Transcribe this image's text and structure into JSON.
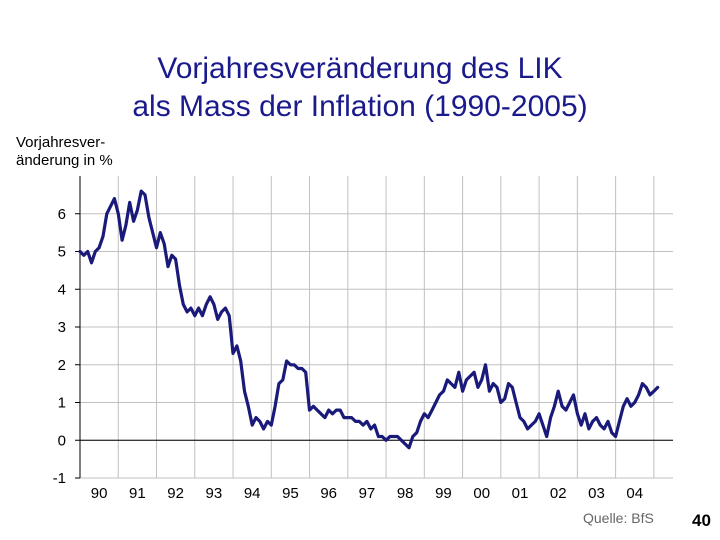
{
  "page": {
    "title_line1": "Vorjahresveränderung des LIK",
    "title_line2": "als Mass der Inflation (1990-2005)",
    "source": "Quelle: BfS",
    "page_number": "40",
    "colors": {
      "title": "#1a1a8c",
      "line": "#1a1a7a",
      "grid": "#c0c0c0"
    }
  },
  "chart_data": {
    "type": "line",
    "title": "Vorjahresveränderung des LIK als Mass der Inflation (1990-2005)",
    "ylabel_line1": "Vorjahresver-",
    "ylabel_line2": "änderung in %",
    "xlabel": "",
    "ylim": [
      -1,
      7
    ],
    "xlim": [
      1990,
      2005.5
    ],
    "yticks": [
      "6",
      "5",
      "4",
      "3",
      "2",
      "1",
      "0",
      "-1"
    ],
    "ytick_values": [
      6,
      5,
      4,
      3,
      2,
      1,
      0,
      -1
    ],
    "xtick_labels": [
      "90",
      "91",
      "92",
      "93",
      "94",
      "95",
      "96",
      "97",
      "98",
      "99",
      "00",
      "01",
      "02",
      "03",
      "04"
    ],
    "grid": true,
    "series": [
      {
        "values": [
          [
            1990.0,
            5.0
          ],
          [
            1990.1,
            4.9
          ],
          [
            1990.2,
            5.0
          ],
          [
            1990.3,
            4.7
          ],
          [
            1990.4,
            5.0
          ],
          [
            1990.5,
            5.1
          ],
          [
            1990.6,
            5.4
          ],
          [
            1990.7,
            6.0
          ],
          [
            1990.8,
            6.2
          ],
          [
            1990.9,
            6.4
          ],
          [
            1991.0,
            6.0
          ],
          [
            1991.1,
            5.3
          ],
          [
            1991.2,
            5.7
          ],
          [
            1991.3,
            6.3
          ],
          [
            1991.4,
            5.8
          ],
          [
            1991.5,
            6.1
          ],
          [
            1991.6,
            6.6
          ],
          [
            1991.7,
            6.5
          ],
          [
            1991.8,
            5.9
          ],
          [
            1991.9,
            5.5
          ],
          [
            1992.0,
            5.1
          ],
          [
            1992.1,
            5.5
          ],
          [
            1992.2,
            5.2
          ],
          [
            1992.3,
            4.6
          ],
          [
            1992.4,
            4.9
          ],
          [
            1992.5,
            4.8
          ],
          [
            1992.6,
            4.1
          ],
          [
            1992.7,
            3.6
          ],
          [
            1992.8,
            3.4
          ],
          [
            1992.9,
            3.5
          ],
          [
            1993.0,
            3.3
          ],
          [
            1993.1,
            3.5
          ],
          [
            1993.2,
            3.3
          ],
          [
            1993.3,
            3.6
          ],
          [
            1993.4,
            3.8
          ],
          [
            1993.5,
            3.6
          ],
          [
            1993.6,
            3.2
          ],
          [
            1993.7,
            3.4
          ],
          [
            1993.8,
            3.5
          ],
          [
            1993.9,
            3.3
          ],
          [
            1994.0,
            2.3
          ],
          [
            1994.1,
            2.5
          ],
          [
            1994.2,
            2.1
          ],
          [
            1994.3,
            1.3
          ],
          [
            1994.4,
            0.9
          ],
          [
            1994.5,
            0.4
          ],
          [
            1994.6,
            0.6
          ],
          [
            1994.7,
            0.5
          ],
          [
            1994.8,
            0.3
          ],
          [
            1994.9,
            0.5
          ],
          [
            1995.0,
            0.4
          ],
          [
            1995.1,
            0.9
          ],
          [
            1995.2,
            1.5
          ],
          [
            1995.3,
            1.6
          ],
          [
            1995.4,
            2.1
          ],
          [
            1995.5,
            2.0
          ],
          [
            1995.6,
            2.0
          ],
          [
            1995.7,
            1.9
          ],
          [
            1995.8,
            1.9
          ],
          [
            1995.9,
            1.8
          ],
          [
            1996.0,
            0.8
          ],
          [
            1996.1,
            0.9
          ],
          [
            1996.2,
            0.8
          ],
          [
            1996.3,
            0.7
          ],
          [
            1996.4,
            0.6
          ],
          [
            1996.5,
            0.8
          ],
          [
            1996.6,
            0.7
          ],
          [
            1996.7,
            0.8
          ],
          [
            1996.8,
            0.8
          ],
          [
            1996.9,
            0.6
          ],
          [
            1997.0,
            0.6
          ],
          [
            1997.1,
            0.6
          ],
          [
            1997.2,
            0.5
          ],
          [
            1997.3,
            0.5
          ],
          [
            1997.4,
            0.4
          ],
          [
            1997.5,
            0.5
          ],
          [
            1997.6,
            0.3
          ],
          [
            1997.7,
            0.4
          ],
          [
            1997.8,
            0.1
          ],
          [
            1997.9,
            0.1
          ],
          [
            1998.0,
            0.0
          ],
          [
            1998.1,
            0.1
          ],
          [
            1998.2,
            0.1
          ],
          [
            1998.3,
            0.1
          ],
          [
            1998.4,
            0.0
          ],
          [
            1998.5,
            -0.1
          ],
          [
            1998.6,
            -0.2
          ],
          [
            1998.7,
            0.1
          ],
          [
            1998.8,
            0.2
          ],
          [
            1998.9,
            0.5
          ],
          [
            1999.0,
            0.7
          ],
          [
            1999.1,
            0.6
          ],
          [
            1999.2,
            0.8
          ],
          [
            1999.3,
            1.0
          ],
          [
            1999.4,
            1.2
          ],
          [
            1999.5,
            1.3
          ],
          [
            1999.6,
            1.6
          ],
          [
            1999.7,
            1.5
          ],
          [
            1999.8,
            1.4
          ],
          [
            1999.9,
            1.8
          ],
          [
            2000.0,
            1.3
          ],
          [
            2000.1,
            1.6
          ],
          [
            2000.2,
            1.7
          ],
          [
            2000.3,
            1.8
          ],
          [
            2000.4,
            1.4
          ],
          [
            2000.5,
            1.6
          ],
          [
            2000.6,
            2.0
          ],
          [
            2000.7,
            1.3
          ],
          [
            2000.8,
            1.5
          ],
          [
            2000.9,
            1.4
          ],
          [
            2001.0,
            1.0
          ],
          [
            2001.1,
            1.1
          ],
          [
            2001.2,
            1.5
          ],
          [
            2001.3,
            1.4
          ],
          [
            2001.4,
            1.0
          ],
          [
            2001.5,
            0.6
          ],
          [
            2001.6,
            0.5
          ],
          [
            2001.7,
            0.3
          ],
          [
            2001.8,
            0.4
          ],
          [
            2001.9,
            0.5
          ],
          [
            2002.0,
            0.7
          ],
          [
            2002.1,
            0.4
          ],
          [
            2002.2,
            0.1
          ],
          [
            2002.3,
            0.6
          ],
          [
            2002.4,
            0.9
          ],
          [
            2002.5,
            1.3
          ],
          [
            2002.6,
            0.9
          ],
          [
            2002.7,
            0.8
          ],
          [
            2002.8,
            1.0
          ],
          [
            2002.9,
            1.2
          ],
          [
            2003.0,
            0.7
          ],
          [
            2003.1,
            0.4
          ],
          [
            2003.2,
            0.7
          ],
          [
            2003.3,
            0.3
          ],
          [
            2003.4,
            0.5
          ],
          [
            2003.5,
            0.6
          ],
          [
            2003.6,
            0.4
          ],
          [
            2003.7,
            0.3
          ],
          [
            2003.8,
            0.5
          ],
          [
            2003.9,
            0.2
          ],
          [
            2004.0,
            0.1
          ],
          [
            2004.1,
            0.5
          ],
          [
            2004.2,
            0.9
          ],
          [
            2004.3,
            1.1
          ],
          [
            2004.4,
            0.9
          ],
          [
            2004.5,
            1.0
          ],
          [
            2004.6,
            1.2
          ],
          [
            2004.7,
            1.5
          ],
          [
            2004.8,
            1.4
          ],
          [
            2004.9,
            1.2
          ],
          [
            2005.0,
            1.3
          ],
          [
            2005.1,
            1.4
          ]
        ]
      }
    ]
  }
}
